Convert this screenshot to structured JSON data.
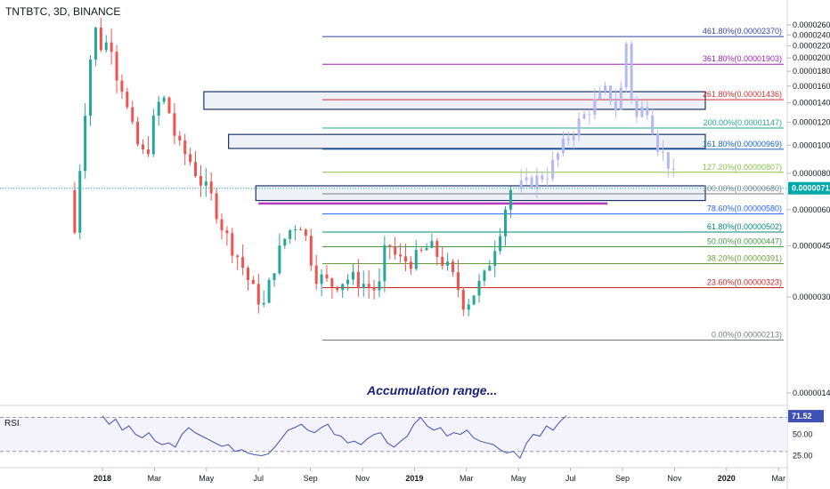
{
  "header": {
    "symbol": "TNTBTC, 3D, BINANCE"
  },
  "annotation": "Accumulation range...",
  "colors": {
    "up": "#26a69a",
    "down": "#ef5350",
    "projection": "#b4b9f0",
    "rsi_line": "#3f51b5",
    "box_border": "#1a3566",
    "box_fill": "#eef1f6",
    "purple_line": "#b33cc1",
    "price_line": "#00a9a9",
    "price_label_bg": "#00a9a9"
  },
  "chart_data": {
    "type": "candlestick",
    "title": "TNTBTC, 3D, BINANCE",
    "y_scale": "log",
    "ylim": [
      1.2e-06,
      2.8e-06
    ],
    "y_ticks": [
      "0.00002600",
      "0.00002400",
      "0.00002200",
      "0.00002000",
      "0.00001800",
      "0.00001600",
      "0.00001400",
      "0.00001200",
      "0.00001000",
      "0.00000800",
      "0.00000600",
      "0.00000450",
      "0.00000300",
      "0.00000140"
    ],
    "x_ticks": [
      "2018",
      "Mar",
      "May",
      "Jul",
      "Sep",
      "Nov",
      "2019",
      "Mar",
      "May",
      "Jul",
      "Sep",
      "Nov",
      "2020",
      "Mar"
    ],
    "current_price": "0.00000711",
    "price_path": [
      [
        0.0,
        7e-06
      ],
      [
        0.05,
        7.5e-06
      ],
      [
        0.1,
        5e-06
      ],
      [
        0.2,
        1.1e-05
      ],
      [
        0.3,
        2e-05
      ],
      [
        0.38,
        2.6e-05
      ],
      [
        0.45,
        2.1e-05
      ],
      [
        0.55,
        2.4e-05
      ],
      [
        0.62,
        1.8e-05
      ],
      [
        0.7,
        1.6e-05
      ],
      [
        0.8,
        1.2e-05
      ],
      [
        0.9,
        1e-05
      ],
      [
        1.0,
        9e-06
      ],
      [
        1.1,
        1.2e-05
      ],
      [
        1.2,
        1.5e-05
      ],
      [
        1.3,
        1.3e-05
      ],
      [
        1.4,
        1e-05
      ],
      [
        1.55,
        9e-06
      ],
      [
        1.7,
        7.5e-06
      ],
      [
        1.85,
        6.5e-06
      ],
      [
        2.0,
        5e-06
      ],
      [
        2.2,
        4e-06
      ],
      [
        2.35,
        3.2e-06
      ],
      [
        2.5,
        2.8e-06
      ],
      [
        2.65,
        4e-06
      ],
      [
        2.8,
        5e-06
      ],
      [
        2.95,
        5.5e-06
      ],
      [
        3.0,
        5.2e-06
      ],
      [
        3.15,
        3.6e-06
      ],
      [
        3.35,
        3.3e-06
      ],
      [
        3.6,
        3.5e-06
      ],
      [
        3.9,
        3.2e-06
      ],
      [
        4.0,
        3.3e-06
      ],
      [
        4.05,
        4.8e-06
      ],
      [
        4.2,
        4e-06
      ],
      [
        4.4,
        4e-06
      ],
      [
        4.6,
        4.5e-06
      ],
      [
        4.8,
        3.9e-06
      ],
      [
        4.95,
        3.3e-06
      ],
      [
        5.05,
        2.8e-06
      ],
      [
        5.3,
        3.5e-06
      ],
      [
        5.5,
        5.2e-06
      ],
      [
        5.62,
        7e-06
      ],
      [
        5.68,
        7.1e-06
      ]
    ],
    "projection_path": [
      [
        5.7,
        7.1e-06
      ],
      [
        5.9,
        7.5e-06
      ],
      [
        6.1,
        8e-06
      ],
      [
        6.3,
        1e-05
      ],
      [
        6.5,
        1.2e-05
      ],
      [
        6.7,
        1.4e-05
      ],
      [
        6.85,
        1.55e-05
      ],
      [
        7.0,
        1.3e-05
      ],
      [
        7.1,
        2.25e-05
      ],
      [
        7.2,
        1.2e-05
      ],
      [
        7.35,
        1.4e-05
      ],
      [
        7.5,
        1e-05
      ],
      [
        7.65,
        8.5e-06
      ],
      [
        7.75,
        7.1e-06
      ]
    ],
    "fib_levels": [
      {
        "label": "461.80%(0.00002370)",
        "value": 2.37e-05,
        "color": "#3346a3"
      },
      {
        "label": "361.80%(0.00001903)",
        "value": 1.903e-05,
        "color": "#9c27b0"
      },
      {
        "label": "261.80%(0.00001436)",
        "value": 1.436e-05,
        "color": "#d32f2f"
      },
      {
        "label": "200.00%(0.00001147)",
        "value": 1.147e-05,
        "color": "#26a69a"
      },
      {
        "label": "161.80%(0.00000969)",
        "value": 9.69e-06,
        "color": "#1565c0"
      },
      {
        "label": "127.20%(0.00000807)",
        "value": 8.07e-06,
        "color": "#8bc34a"
      },
      {
        "label": "100.00%(0.00000680)",
        "value": 6.8e-06,
        "color": "#787b86"
      },
      {
        "label": "78.60%(0.00000580)",
        "value": 5.8e-06,
        "color": "#2962ff"
      },
      {
        "label": "61.80%(0.00000502)",
        "value": 5.02e-06,
        "color": "#00897b"
      },
      {
        "label": "50.00%(0.00000447)",
        "value": 4.47e-06,
        "color": "#43a047"
      },
      {
        "label": "38.20%(0.00000391)",
        "value": 3.91e-06,
        "color": "#689f38"
      },
      {
        "label": "23.60%(0.00000323)",
        "value": 3.23e-06,
        "color": "#c62828"
      },
      {
        "label": "0.00%(0.00000213)",
        "value": 2.13e-06,
        "color": "#787b86"
      }
    ],
    "rsi": {
      "label": "RSI",
      "current": "71.52",
      "ticks": [
        "50.00",
        "25.00"
      ],
      "upper_band": 70,
      "lower_band": 30,
      "values": [
        72,
        62,
        68,
        55,
        60,
        50,
        46,
        52,
        42,
        38,
        40,
        35,
        50,
        58,
        52,
        48,
        44,
        40,
        36,
        38,
        30,
        32,
        28,
        26,
        25,
        27,
        35,
        45,
        55,
        58,
        62,
        55,
        52,
        58,
        62,
        50,
        48,
        40,
        42,
        38,
        45,
        50,
        52,
        40,
        35,
        42,
        48,
        62,
        70,
        60,
        55,
        58,
        48,
        52,
        50,
        55,
        46,
        42,
        40,
        38,
        32,
        28,
        30,
        22,
        40,
        50,
        48,
        60,
        55,
        65,
        72
      ]
    }
  }
}
